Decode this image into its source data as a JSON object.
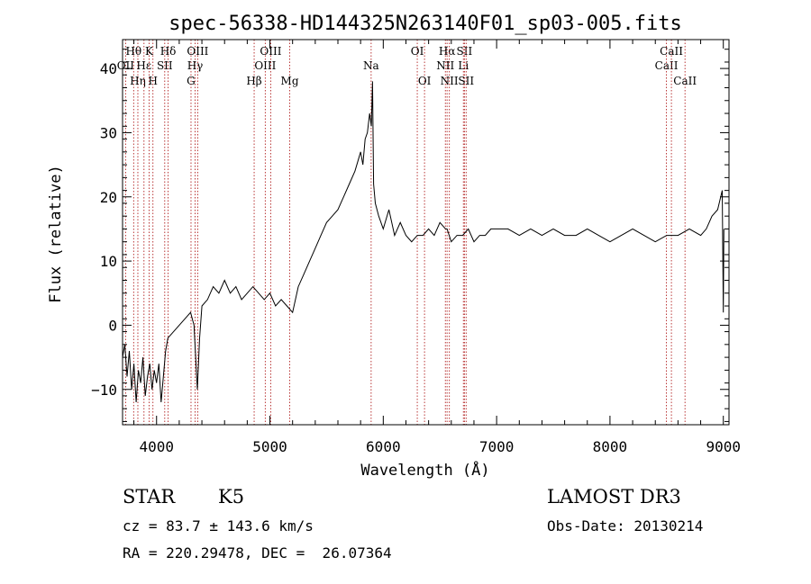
{
  "chart_data": {
    "type": "line",
    "title": "spec-56338-HD144325N263140F01_sp03-005.fits",
    "xlabel": "Wavelength (Å)",
    "ylabel": "Flux (relative)",
    "xlim": [
      3700,
      9050
    ],
    "ylim": [
      -15.5,
      44.5
    ],
    "xticks": [
      4000,
      5000,
      6000,
      7000,
      8000,
      9000
    ],
    "yticks": [
      -10,
      0,
      10,
      20,
      30,
      40
    ],
    "grid": false,
    "series": [
      {
        "x": [
          3700,
          3720,
          3740,
          3760,
          3780,
          3800,
          3820,
          3840,
          3860,
          3880,
          3900,
          3920,
          3940,
          3960,
          3980,
          4000,
          4020,
          4040,
          4060,
          4080,
          4100,
          4150,
          4200,
          4250,
          4300,
          4330,
          4360,
          4380,
          4400,
          4450,
          4500,
          4550,
          4600,
          4650,
          4700,
          4750,
          4800,
          4850,
          4900,
          4950,
          5000,
          5050,
          5100,
          5150,
          5200,
          5250,
          5300,
          5350,
          5400,
          5450,
          5500,
          5550,
          5600,
          5650,
          5700,
          5750,
          5800,
          5820,
          5840,
          5860,
          5880,
          5895,
          5905,
          5915,
          5930,
          5960,
          6000,
          6050,
          6100,
          6150,
          6200,
          6250,
          6300,
          6350,
          6400,
          6450,
          6500,
          6550,
          6563,
          6600,
          6650,
          6700,
          6750,
          6800,
          6850,
          6900,
          6950,
          7000,
          7100,
          7200,
          7300,
          7400,
          7500,
          7600,
          7700,
          7800,
          7900,
          8000,
          8100,
          8200,
          8300,
          8400,
          8500,
          8600,
          8700,
          8800,
          8850,
          8900,
          8950,
          8990,
          9000,
          9005
        ],
        "values": [
          -5,
          -3,
          -8,
          -4,
          -10,
          -6,
          -12,
          -7,
          -9,
          -5,
          -11,
          -8,
          -6,
          -10,
          -7,
          -9,
          -6,
          -12,
          -8,
          -4,
          -2,
          -1,
          0,
          1,
          2,
          0,
          -10,
          -2,
          3,
          4,
          6,
          5,
          7,
          5,
          6,
          4,
          5,
          6,
          5,
          4,
          5,
          3,
          4,
          3,
          2,
          6,
          8,
          10,
          12,
          14,
          16,
          17,
          18,
          20,
          22,
          24,
          27,
          25,
          29,
          30,
          33,
          31,
          38,
          22,
          19,
          17,
          15,
          18,
          14,
          16,
          14,
          13,
          14,
          14,
          15,
          14,
          16,
          15,
          15,
          13,
          14,
          14,
          15,
          13,
          14,
          14,
          15,
          15,
          15,
          14,
          15,
          14,
          15,
          14,
          14,
          15,
          14,
          13,
          14,
          15,
          14,
          13,
          14,
          14,
          15,
          14,
          15,
          17,
          18,
          21,
          2,
          15
        ]
      }
    ],
    "spectral_lines": [
      {
        "label": "OII",
        "wavelength": 3727,
        "row": 1
      },
      {
        "label": "Hθ",
        "wavelength": 3798,
        "row": 0
      },
      {
        "label": "Hη",
        "wavelength": 3835,
        "row": 2
      },
      {
        "label": "Hε",
        "wavelength": 3889,
        "row": 1
      },
      {
        "label": "K",
        "wavelength": 3934,
        "row": 0
      },
      {
        "label": "H",
        "wavelength": 3968,
        "row": 2
      },
      {
        "label": "SII",
        "wavelength": 4072,
        "row": 1
      },
      {
        "label": "Hδ",
        "wavelength": 4102,
        "row": 0
      },
      {
        "label": "G",
        "wavelength": 4304,
        "row": 2
      },
      {
        "label": "Hγ",
        "wavelength": 4340,
        "row": 1
      },
      {
        "label": "OIII",
        "wavelength": 4363,
        "row": 0
      },
      {
        "label": "Hβ",
        "wavelength": 4861,
        "row": 2
      },
      {
        "label": "OIII",
        "wavelength": 4959,
        "row": 1
      },
      {
        "label": "OIII",
        "wavelength": 5007,
        "row": 0
      },
      {
        "label": "Mg",
        "wavelength": 5175,
        "row": 2
      },
      {
        "label": "Na",
        "wavelength": 5893,
        "row": 1
      },
      {
        "label": "OI",
        "wavelength": 6300,
        "row": 0
      },
      {
        "label": "OI",
        "wavelength": 6364,
        "row": 2
      },
      {
        "label": "NII",
        "wavelength": 6548,
        "row": 1
      },
      {
        "label": "Hα",
        "wavelength": 6563,
        "row": 0
      },
      {
        "label": "NII",
        "wavelength": 6583,
        "row": 2
      },
      {
        "label": "Li",
        "wavelength": 6707,
        "row": 1
      },
      {
        "label": "SII",
        "wavelength": 6716,
        "row": 0
      },
      {
        "label": "SII",
        "wavelength": 6731,
        "row": 2
      },
      {
        "label": "CaII",
        "wavelength": 8498,
        "row": 1
      },
      {
        "label": "CaII",
        "wavelength": 8542,
        "row": 0
      },
      {
        "label": "CaII",
        "wavelength": 8662,
        "row": 2
      }
    ],
    "colors": {
      "spectrum": "#000000",
      "lines": "#b22222"
    }
  },
  "info": {
    "class": "STAR",
    "subclass": "K5",
    "survey": "LAMOST DR3",
    "cz": "cz = 83.7 ± 143.6 km/s",
    "obs_date": "Obs-Date: 20130214",
    "coords": "RA = 220.29478, DEC =  26.07364"
  }
}
